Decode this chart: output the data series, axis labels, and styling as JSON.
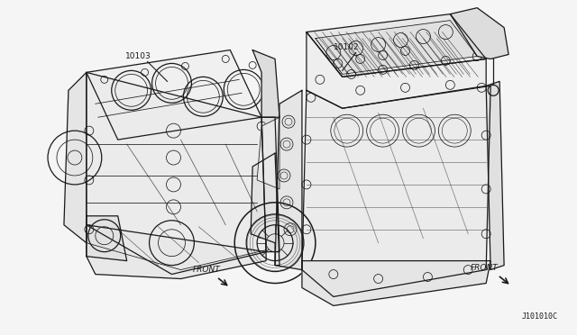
{
  "background_color": "#f5f5f5",
  "fig_width": 6.4,
  "fig_height": 3.72,
  "dpi": 100,
  "label_left_part": "10103",
  "label_right_part": "10102",
  "label_front_left": "FRONT",
  "label_front_right": "FRONT",
  "diagram_code": "J101010C",
  "text_color": "#1a1a1a",
  "line_color": "#1a1a1a",
  "font_size_label": 6.5,
  "font_size_front": 6.5,
  "font_size_code": 6
}
